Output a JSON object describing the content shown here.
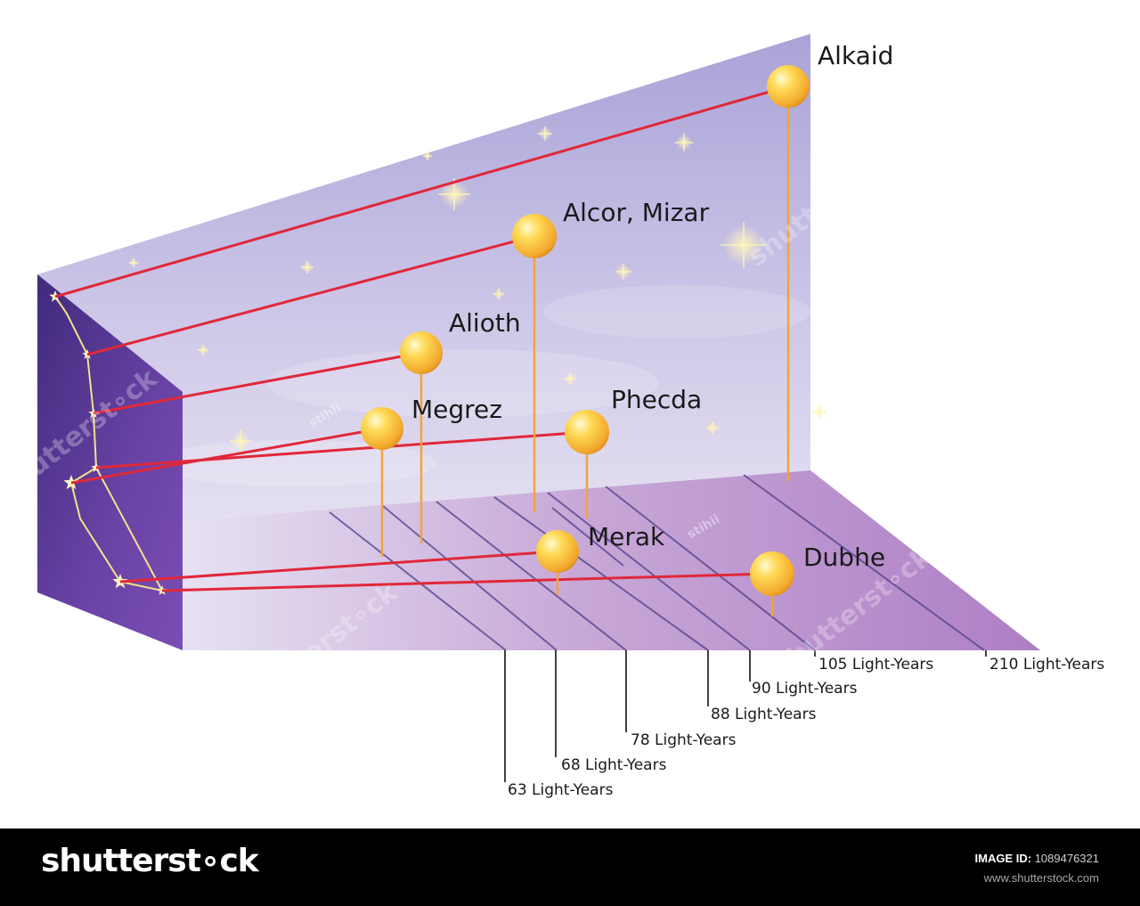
{
  "stars": [
    {
      "name": "Alkaid"
    },
    {
      "name": "Alcor, Mizar"
    },
    {
      "name": "Alioth"
    },
    {
      "name": "Megrez"
    },
    {
      "name": "Phecda"
    },
    {
      "name": "Merak"
    },
    {
      "name": "Dubhe"
    }
  ],
  "distances": [
    "63 Light-Years",
    "68 Light-Years",
    "78 Light-Years",
    "88 Light-Years",
    "90 Light-Years",
    "105 Light-Years",
    "210 Light-Years"
  ],
  "watermarks": {
    "stock": "shutterst∘ck",
    "author": "stihii"
  },
  "footer": {
    "brand": "shutterst∘ck",
    "image_id_label": "IMAGE ID:",
    "image_id": "1089476321",
    "site": "www.shutterstock.com"
  },
  "colors": {
    "sky_top": "#b3aedf",
    "sky_bottom": "#e2def0",
    "floor": "#b98cc9",
    "side_panel": "#5e3a98",
    "ray": "#e0283a",
    "stem": "#f2a43a",
    "sphere": "#ffc93c",
    "constellation": "#f4e28a"
  }
}
